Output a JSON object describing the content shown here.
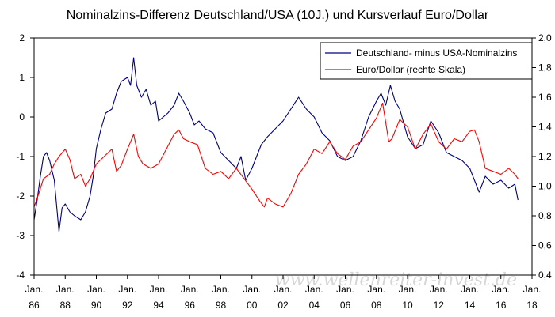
{
  "chart_data": {
    "type": "line",
    "title": "Nominalzins-Differenz Deutschland/USA (10J.) und Kursverlauf Euro/Dollar",
    "watermark": "www.wellenreiter-invest.de",
    "x_tick_labels": [
      {
        "month": "Jan.",
        "year": "86"
      },
      {
        "month": "Jan.",
        "year": "88"
      },
      {
        "month": "Jan.",
        "year": "90"
      },
      {
        "month": "Jan.",
        "year": "92"
      },
      {
        "month": "Jan.",
        "year": "94"
      },
      {
        "month": "Jan.",
        "year": "96"
      },
      {
        "month": "Jan.",
        "year": "98"
      },
      {
        "month": "Jan.",
        "year": "00"
      },
      {
        "month": "Jan.",
        "year": "02"
      },
      {
        "month": "Jan.",
        "year": "04"
      },
      {
        "month": "Jan.",
        "year": "06"
      },
      {
        "month": "Jan.",
        "year": "08"
      },
      {
        "month": "Jan.",
        "year": "10"
      },
      {
        "month": "Jan.",
        "year": "12"
      },
      {
        "month": "Jan.",
        "year": "14"
      },
      {
        "month": "Jan.",
        "year": "16"
      },
      {
        "month": "Jan.",
        "year": "18"
      }
    ],
    "x_range": [
      1986,
      2018
    ],
    "y_left": {
      "ticks": [
        "2",
        "1",
        "0",
        "-1",
        "-2",
        "-3",
        "-4"
      ],
      "range": [
        -4,
        2
      ]
    },
    "y_right": {
      "ticks": [
        "2,0",
        "1,8",
        "1,6",
        "1,4",
        "1,2",
        "1,0",
        "0,8",
        "0,6",
        "0,4"
      ],
      "range": [
        0.4,
        2.0
      ]
    },
    "legend": {
      "position": "top-right",
      "entries": [
        {
          "label": "Deutschland- minus USA-Nominalzins",
          "color": "#000080"
        },
        {
          "label": "Euro/Dollar (rechte Skala)",
          "color": "#ff0000"
        }
      ]
    },
    "grid": {
      "horizontal": false,
      "vertical": false
    },
    "series": [
      {
        "name": "Deutschland- minus USA-Nominalzins",
        "axis": "left",
        "color": "#000080",
        "x": [
          1986.0,
          1986.2,
          1986.4,
          1986.6,
          1986.8,
          1987.0,
          1987.3,
          1987.6,
          1987.8,
          1988.0,
          1988.3,
          1988.6,
          1989.0,
          1989.3,
          1989.6,
          1989.8,
          1990.0,
          1990.3,
          1990.6,
          1991.0,
          1991.3,
          1991.6,
          1992.0,
          1992.2,
          1992.4,
          1992.6,
          1992.9,
          1993.2,
          1993.5,
          1993.8,
          1994.0,
          1994.3,
          1994.6,
          1995.0,
          1995.3,
          1995.6,
          1996.0,
          1996.3,
          1996.6,
          1997.0,
          1997.5,
          1998.0,
          1998.5,
          1999.0,
          1999.3,
          1999.6,
          2000.0,
          2000.3,
          2000.6,
          2001.0,
          2001.5,
          2002.0,
          2002.5,
          2003.0,
          2003.5,
          2004.0,
          2004.5,
          2005.0,
          2005.5,
          2006.0,
          2006.5,
          2007.0,
          2007.5,
          2008.0,
          2008.3,
          2008.6,
          2008.9,
          2009.2,
          2009.5,
          2010.0,
          2010.5,
          2011.0,
          2011.5,
          2012.0,
          2012.5,
          2013.0,
          2013.5,
          2014.0,
          2014.3,
          2014.6,
          2015.0,
          2015.5,
          2016.0,
          2016.5,
          2016.9,
          2017.1
        ],
        "y": [
          -2.6,
          -2.1,
          -1.5,
          -1.0,
          -0.9,
          -1.1,
          -1.6,
          -2.9,
          -2.3,
          -2.2,
          -2.4,
          -2.5,
          -2.6,
          -2.4,
          -2.0,
          -1.5,
          -0.8,
          -0.3,
          0.1,
          0.2,
          0.6,
          0.9,
          1.0,
          0.8,
          1.5,
          0.8,
          0.5,
          0.7,
          0.3,
          0.4,
          -0.1,
          0.0,
          0.1,
          0.3,
          0.6,
          0.4,
          0.1,
          -0.2,
          -0.1,
          -0.3,
          -0.4,
          -0.9,
          -1.1,
          -1.3,
          -1.0,
          -1.6,
          -1.3,
          -1.0,
          -0.7,
          -0.5,
          -0.3,
          -0.1,
          0.2,
          0.5,
          0.2,
          0.0,
          -0.4,
          -0.6,
          -1.0,
          -1.1,
          -1.0,
          -0.6,
          0.0,
          0.4,
          0.6,
          0.3,
          0.8,
          0.4,
          0.2,
          -0.5,
          -0.8,
          -0.7,
          -0.1,
          -0.4,
          -0.9,
          -1.0,
          -1.1,
          -1.3,
          -1.6,
          -1.9,
          -1.5,
          -1.7,
          -1.6,
          -1.8,
          -1.7,
          -2.1
        ]
      },
      {
        "name": "Euro/Dollar (rechte Skala)",
        "axis": "right",
        "color": "#ff0000",
        "x": [
          1986.0,
          1986.3,
          1986.6,
          1987.0,
          1987.3,
          1987.6,
          1988.0,
          1988.3,
          1988.6,
          1989.0,
          1989.3,
          1989.6,
          1990.0,
          1990.5,
          1991.0,
          1991.3,
          1991.6,
          1992.0,
          1992.4,
          1992.7,
          1993.0,
          1993.5,
          1994.0,
          1994.5,
          1995.0,
          1995.3,
          1995.6,
          1996.0,
          1996.5,
          1997.0,
          1997.5,
          1998.0,
          1998.5,
          1999.0,
          1999.5,
          2000.0,
          2000.5,
          2000.8,
          2001.0,
          2001.5,
          2002.0,
          2002.5,
          2003.0,
          2003.5,
          2004.0,
          2004.5,
          2005.0,
          2005.5,
          2006.0,
          2006.5,
          2007.0,
          2007.5,
          2008.0,
          2008.4,
          2008.8,
          2009.0,
          2009.5,
          2010.0,
          2010.5,
          2011.0,
          2011.5,
          2012.0,
          2012.5,
          2013.0,
          2013.5,
          2014.0,
          2014.3,
          2014.6,
          2015.0,
          2015.5,
          2016.0,
          2016.5,
          2016.9,
          2017.1
        ],
        "y": [
          0.86,
          0.95,
          1.05,
          1.08,
          1.15,
          1.2,
          1.25,
          1.18,
          1.05,
          1.08,
          1.0,
          1.05,
          1.15,
          1.2,
          1.25,
          1.1,
          1.14,
          1.25,
          1.35,
          1.2,
          1.15,
          1.12,
          1.15,
          1.25,
          1.35,
          1.38,
          1.32,
          1.3,
          1.28,
          1.12,
          1.08,
          1.1,
          1.05,
          1.12,
          1.05,
          0.98,
          0.9,
          0.86,
          0.92,
          0.88,
          0.86,
          0.95,
          1.08,
          1.15,
          1.25,
          1.22,
          1.3,
          1.22,
          1.18,
          1.27,
          1.3,
          1.38,
          1.46,
          1.56,
          1.3,
          1.32,
          1.45,
          1.4,
          1.25,
          1.35,
          1.42,
          1.3,
          1.25,
          1.32,
          1.3,
          1.37,
          1.38,
          1.3,
          1.12,
          1.1,
          1.08,
          1.12,
          1.08,
          1.05
        ]
      }
    ]
  }
}
